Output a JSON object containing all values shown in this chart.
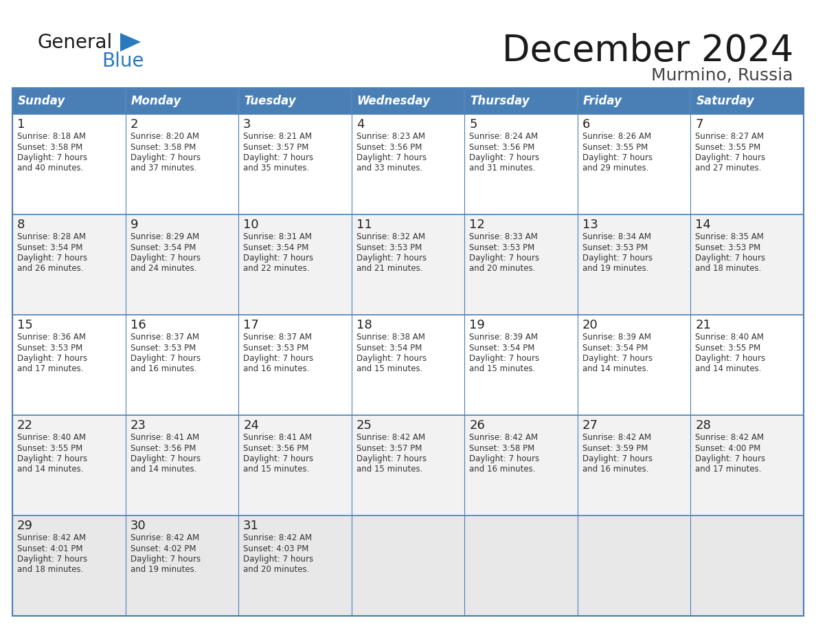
{
  "title": "December 2024",
  "subtitle": "Murmino, Russia",
  "header_bg": "#4a7fb5",
  "header_text_color": "#ffffff",
  "days_of_week": [
    "Sunday",
    "Monday",
    "Tuesday",
    "Wednesday",
    "Thursday",
    "Friday",
    "Saturday"
  ],
  "row_bg_colors": [
    "#ffffff",
    "#f2f2f2",
    "#ffffff",
    "#f2f2f2",
    "#e8e8e8"
  ],
  "cell_border_color": "#4a7fb5",
  "day_num_color": "#222222",
  "info_color": "#333333",
  "calendar": [
    [
      {
        "day": "1",
        "sunrise": "8:18 AM",
        "sunset": "3:58 PM",
        "daylight_h": "7 hours",
        "daylight_m": "and 40 minutes."
      },
      {
        "day": "2",
        "sunrise": "8:20 AM",
        "sunset": "3:58 PM",
        "daylight_h": "7 hours",
        "daylight_m": "and 37 minutes."
      },
      {
        "day": "3",
        "sunrise": "8:21 AM",
        "sunset": "3:57 PM",
        "daylight_h": "7 hours",
        "daylight_m": "and 35 minutes."
      },
      {
        "day": "4",
        "sunrise": "8:23 AM",
        "sunset": "3:56 PM",
        "daylight_h": "7 hours",
        "daylight_m": "and 33 minutes."
      },
      {
        "day": "5",
        "sunrise": "8:24 AM",
        "sunset": "3:56 PM",
        "daylight_h": "7 hours",
        "daylight_m": "and 31 minutes."
      },
      {
        "day": "6",
        "sunrise": "8:26 AM",
        "sunset": "3:55 PM",
        "daylight_h": "7 hours",
        "daylight_m": "and 29 minutes."
      },
      {
        "day": "7",
        "sunrise": "8:27 AM",
        "sunset": "3:55 PM",
        "daylight_h": "7 hours",
        "daylight_m": "and 27 minutes."
      }
    ],
    [
      {
        "day": "8",
        "sunrise": "8:28 AM",
        "sunset": "3:54 PM",
        "daylight_h": "7 hours",
        "daylight_m": "and 26 minutes."
      },
      {
        "day": "9",
        "sunrise": "8:29 AM",
        "sunset": "3:54 PM",
        "daylight_h": "7 hours",
        "daylight_m": "and 24 minutes."
      },
      {
        "day": "10",
        "sunrise": "8:31 AM",
        "sunset": "3:54 PM",
        "daylight_h": "7 hours",
        "daylight_m": "and 22 minutes."
      },
      {
        "day": "11",
        "sunrise": "8:32 AM",
        "sunset": "3:53 PM",
        "daylight_h": "7 hours",
        "daylight_m": "and 21 minutes."
      },
      {
        "day": "12",
        "sunrise": "8:33 AM",
        "sunset": "3:53 PM",
        "daylight_h": "7 hours",
        "daylight_m": "and 20 minutes."
      },
      {
        "day": "13",
        "sunrise": "8:34 AM",
        "sunset": "3:53 PM",
        "daylight_h": "7 hours",
        "daylight_m": "and 19 minutes."
      },
      {
        "day": "14",
        "sunrise": "8:35 AM",
        "sunset": "3:53 PM",
        "daylight_h": "7 hours",
        "daylight_m": "and 18 minutes."
      }
    ],
    [
      {
        "day": "15",
        "sunrise": "8:36 AM",
        "sunset": "3:53 PM",
        "daylight_h": "7 hours",
        "daylight_m": "and 17 minutes."
      },
      {
        "day": "16",
        "sunrise": "8:37 AM",
        "sunset": "3:53 PM",
        "daylight_h": "7 hours",
        "daylight_m": "and 16 minutes."
      },
      {
        "day": "17",
        "sunrise": "8:37 AM",
        "sunset": "3:53 PM",
        "daylight_h": "7 hours",
        "daylight_m": "and 16 minutes."
      },
      {
        "day": "18",
        "sunrise": "8:38 AM",
        "sunset": "3:54 PM",
        "daylight_h": "7 hours",
        "daylight_m": "and 15 minutes."
      },
      {
        "day": "19",
        "sunrise": "8:39 AM",
        "sunset": "3:54 PM",
        "daylight_h": "7 hours",
        "daylight_m": "and 15 minutes."
      },
      {
        "day": "20",
        "sunrise": "8:39 AM",
        "sunset": "3:54 PM",
        "daylight_h": "7 hours",
        "daylight_m": "and 14 minutes."
      },
      {
        "day": "21",
        "sunrise": "8:40 AM",
        "sunset": "3:55 PM",
        "daylight_h": "7 hours",
        "daylight_m": "and 14 minutes."
      }
    ],
    [
      {
        "day": "22",
        "sunrise": "8:40 AM",
        "sunset": "3:55 PM",
        "daylight_h": "7 hours",
        "daylight_m": "and 14 minutes."
      },
      {
        "day": "23",
        "sunrise": "8:41 AM",
        "sunset": "3:56 PM",
        "daylight_h": "7 hours",
        "daylight_m": "and 14 minutes."
      },
      {
        "day": "24",
        "sunrise": "8:41 AM",
        "sunset": "3:56 PM",
        "daylight_h": "7 hours",
        "daylight_m": "and 15 minutes."
      },
      {
        "day": "25",
        "sunrise": "8:42 AM",
        "sunset": "3:57 PM",
        "daylight_h": "7 hours",
        "daylight_m": "and 15 minutes."
      },
      {
        "day": "26",
        "sunrise": "8:42 AM",
        "sunset": "3:58 PM",
        "daylight_h": "7 hours",
        "daylight_m": "and 16 minutes."
      },
      {
        "day": "27",
        "sunrise": "8:42 AM",
        "sunset": "3:59 PM",
        "daylight_h": "7 hours",
        "daylight_m": "and 16 minutes."
      },
      {
        "day": "28",
        "sunrise": "8:42 AM",
        "sunset": "4:00 PM",
        "daylight_h": "7 hours",
        "daylight_m": "and 17 minutes."
      }
    ],
    [
      {
        "day": "29",
        "sunrise": "8:42 AM",
        "sunset": "4:01 PM",
        "daylight_h": "7 hours",
        "daylight_m": "and 18 minutes."
      },
      {
        "day": "30",
        "sunrise": "8:42 AM",
        "sunset": "4:02 PM",
        "daylight_h": "7 hours",
        "daylight_m": "and 19 minutes."
      },
      {
        "day": "31",
        "sunrise": "8:42 AM",
        "sunset": "4:03 PM",
        "daylight_h": "7 hours",
        "daylight_m": "and 20 minutes."
      },
      null,
      null,
      null,
      null
    ]
  ]
}
